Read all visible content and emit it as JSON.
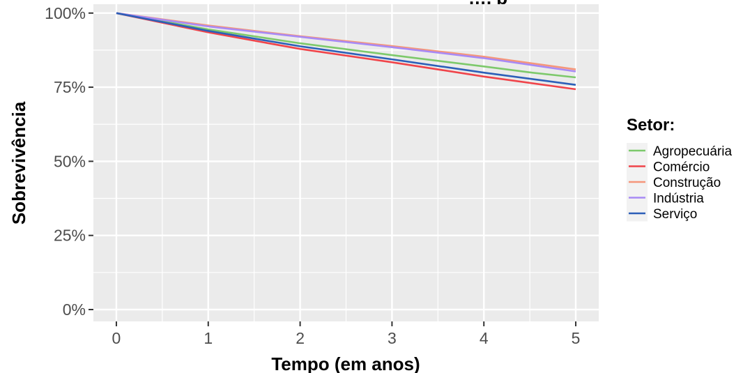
{
  "chart_data": {
    "type": "line",
    "title": "…, p",
    "xlabel": "Tempo (em anos)",
    "ylabel": "Sobrevivência",
    "xlim": [
      -0.25,
      5.25
    ],
    "ylim": [
      -0.04,
      1.03
    ],
    "x_ticks": [
      0,
      1,
      2,
      3,
      4,
      5
    ],
    "x_tick_labels": [
      "0",
      "1",
      "2",
      "3",
      "4",
      "5"
    ],
    "y_ticks": [
      0,
      0.25,
      0.5,
      0.75,
      1.0
    ],
    "y_tick_labels": [
      "0%",
      "25%",
      "50%",
      "75%",
      "100%"
    ],
    "grid": true,
    "legend": {
      "title": "Setor:",
      "placement": "right"
    },
    "series": [
      {
        "name": "Agropecuária",
        "color": "#7dc96b",
        "x": [
          0,
          1,
          2,
          3,
          4,
          4.5,
          5
        ],
        "y": [
          1.0,
          0.945,
          0.898,
          0.858,
          0.82,
          0.8,
          0.783
        ]
      },
      {
        "name": "Comércio",
        "color": "#f0444a",
        "x": [
          0,
          1,
          2,
          3,
          4,
          5
        ],
        "y": [
          1.0,
          0.935,
          0.879,
          0.834,
          0.786,
          0.743
        ]
      },
      {
        "name": "Construção",
        "color": "#f5967a",
        "x": [
          0,
          1,
          2,
          3,
          4,
          5
        ],
        "y": [
          1.0,
          0.958,
          0.922,
          0.889,
          0.853,
          0.81
        ]
      },
      {
        "name": "Indústria",
        "color": "#a88af5",
        "x": [
          0,
          1,
          2,
          3,
          4,
          5
        ],
        "y": [
          1.0,
          0.955,
          0.92,
          0.885,
          0.848,
          0.803
        ]
      },
      {
        "name": "Serviço",
        "color": "#2c5fb8",
        "x": [
          0,
          1,
          2,
          3,
          4,
          5
        ],
        "y": [
          1.0,
          0.94,
          0.888,
          0.844,
          0.799,
          0.758
        ]
      }
    ]
  }
}
